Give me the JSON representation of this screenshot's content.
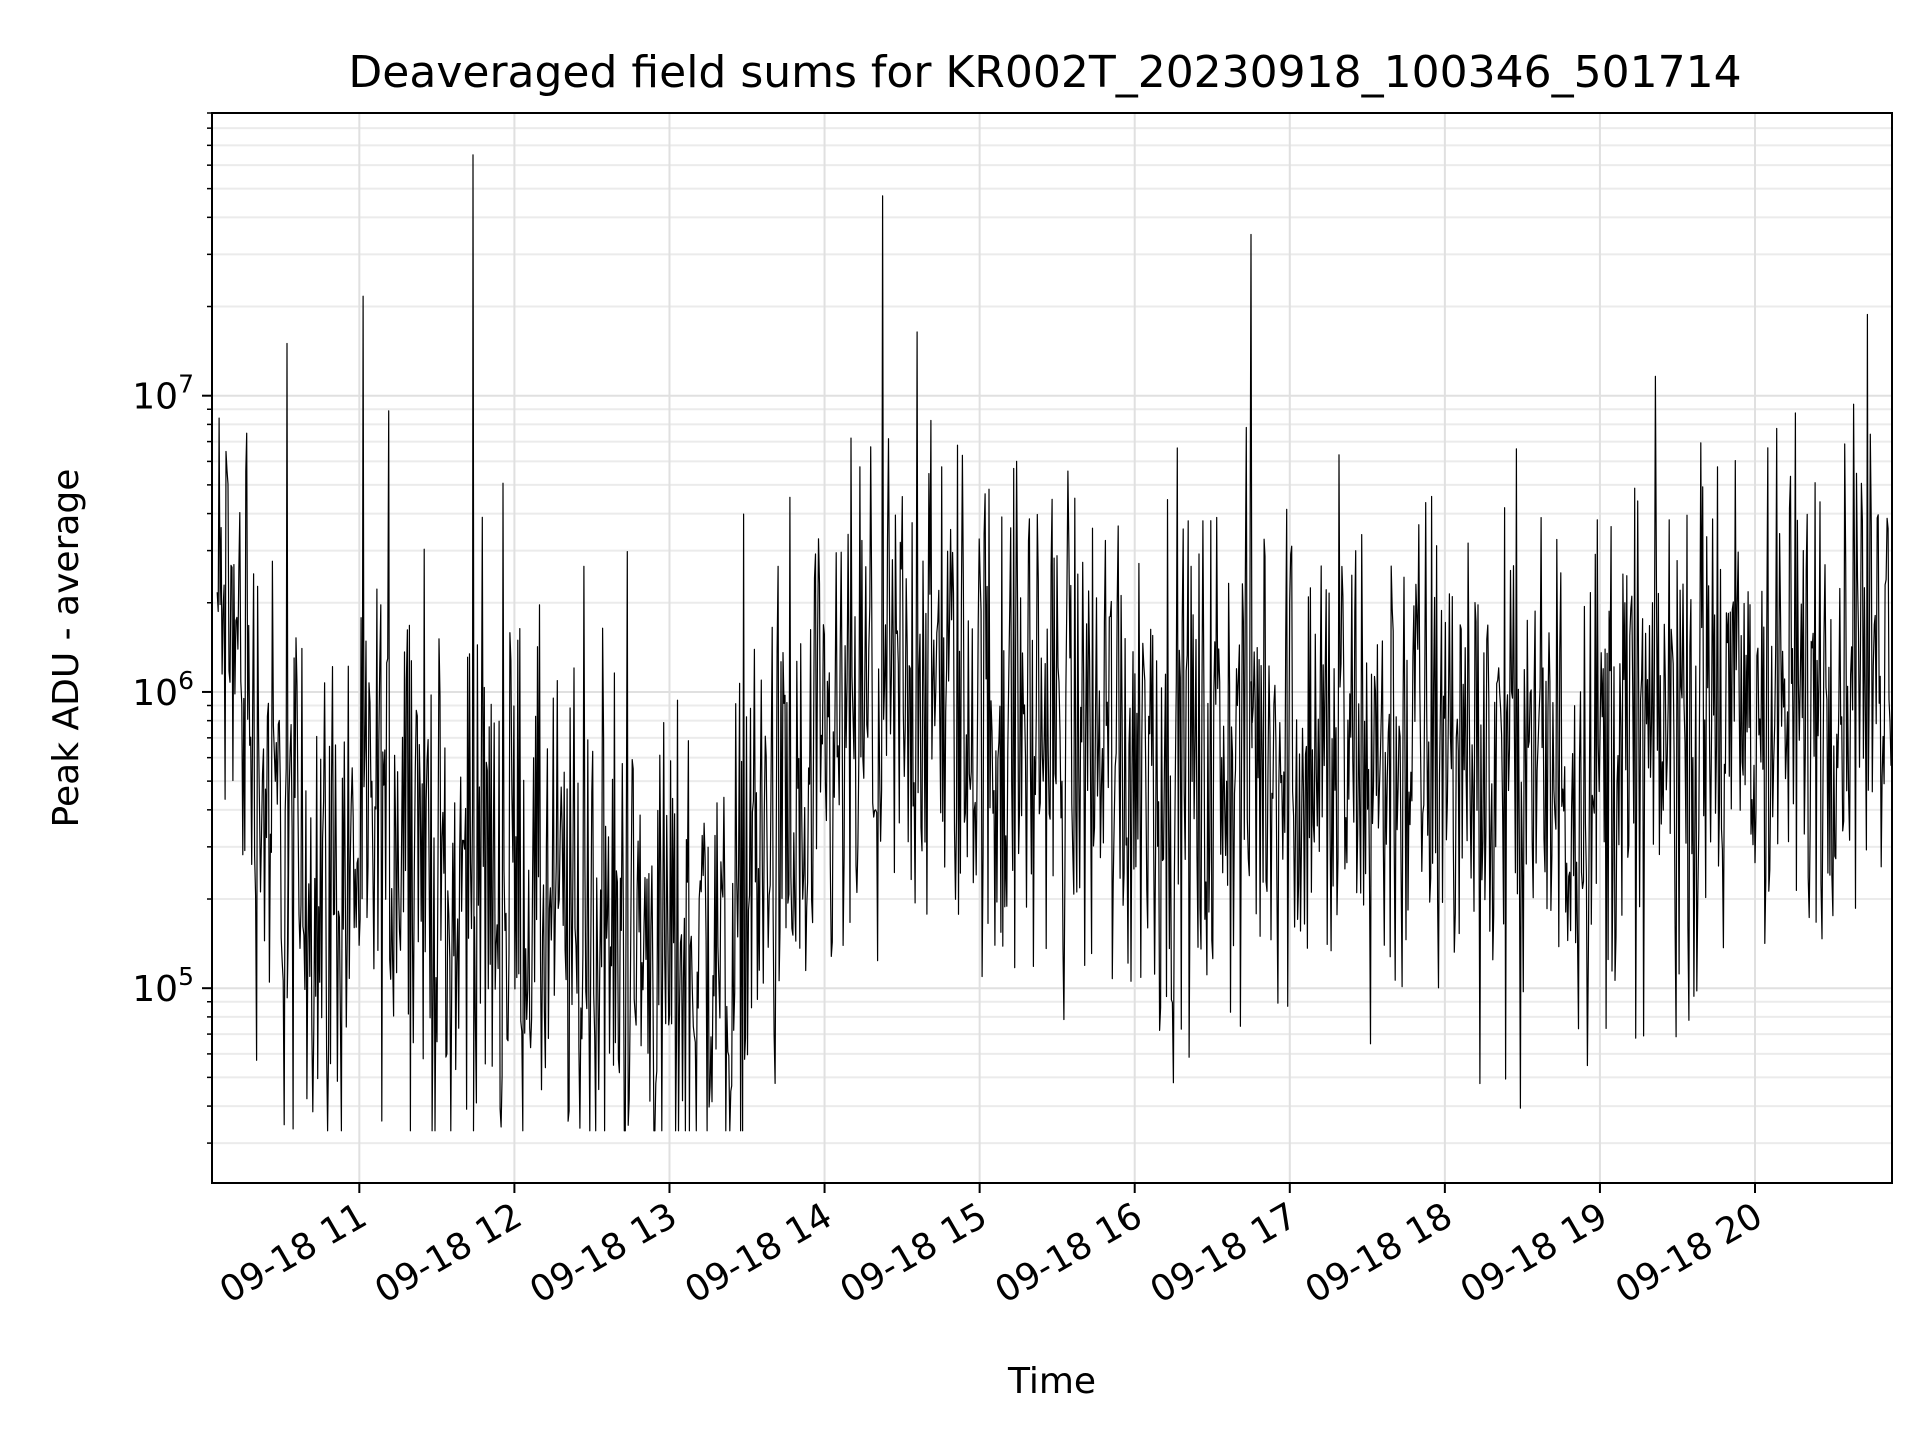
{
  "chart_data": {
    "type": "line",
    "title": "Deaveraged field sums for KR002T_20230918_100346_501714",
    "xlabel": "Time",
    "ylabel": "Peak ADU - average",
    "yscale": "log",
    "ylim": [
      22000,
      90000000
    ],
    "xlim": [
      "2023-09-18 10:03",
      "2023-09-18 20:53"
    ],
    "x_ticks": [
      {
        "value": "2023-09-18 11:00",
        "label": "09-18 11"
      },
      {
        "value": "2023-09-18 12:00",
        "label": "09-18 12"
      },
      {
        "value": "2023-09-18 13:00",
        "label": "09-18 13"
      },
      {
        "value": "2023-09-18 14:00",
        "label": "09-18 14"
      },
      {
        "value": "2023-09-18 15:00",
        "label": "09-18 15"
      },
      {
        "value": "2023-09-18 16:00",
        "label": "09-18 16"
      },
      {
        "value": "2023-09-18 17:00",
        "label": "09-18 17"
      },
      {
        "value": "2023-09-18 18:00",
        "label": "09-18 18"
      },
      {
        "value": "2023-09-18 19:00",
        "label": "09-18 19"
      },
      {
        "value": "2023-09-18 20:00",
        "label": "09-18 20"
      }
    ],
    "y_ticks": [
      {
        "value": 100000,
        "base": "10",
        "exp": "5"
      },
      {
        "value": 1000000,
        "base": "10",
        "exp": "6"
      },
      {
        "value": 10000000,
        "base": "10",
        "exp": "7"
      }
    ],
    "grid": true,
    "line_color": "#000000",
    "series": [
      {
        "x": [
          "10:05",
          "10:10",
          "10:15",
          "10:20",
          "10:25",
          "10:30",
          "10:32",
          "10:35",
          "10:40",
          "10:45",
          "10:50",
          "10:55",
          "11:00",
          "11:05",
          "11:10",
          "11:15",
          "11:20",
          "11:25",
          "11:30",
          "11:35",
          "11:40",
          "11:44",
          "11:45",
          "11:50",
          "11:55",
          "12:00",
          "12:10",
          "12:20",
          "12:30",
          "12:40",
          "12:50",
          "13:00",
          "13:10",
          "13:20",
          "13:25",
          "13:30",
          "13:40",
          "13:50",
          "14:00",
          "14:10",
          "14:20",
          "14:30",
          "14:40",
          "14:50",
          "15:00",
          "15:10",
          "15:20",
          "15:30",
          "15:40",
          "15:50",
          "16:00",
          "16:10",
          "16:20",
          "16:30",
          "16:40",
          "16:45",
          "16:50",
          "17:00",
          "17:10",
          "17:20",
          "17:30",
          "17:40",
          "17:50",
          "18:00",
          "18:10",
          "18:20",
          "18:30",
          "18:40",
          "18:50",
          "19:00",
          "19:10",
          "19:20",
          "19:30",
          "19:40",
          "19:50",
          "20:00",
          "20:10",
          "20:20",
          "20:30",
          "20:40",
          "20:50"
        ],
        "y": [
          1800000,
          1500000,
          1200000,
          600000,
          400000,
          300000,
          15000000,
          200000,
          250000,
          220000,
          200000,
          250000,
          300000,
          280000,
          350000,
          400000,
          450000,
          300000,
          200000,
          150000,
          200000,
          65000000,
          300000,
          250000,
          200000,
          220000,
          180000,
          160000,
          150000,
          140000,
          130000,
          120000,
          130000,
          120000,
          110000,
          250000,
          300000,
          280000,
          400000,
          700000,
          800000,
          900000,
          1000000,
          1000000,
          800000,
          700000,
          800000,
          700000,
          750000,
          700000,
          650000,
          600000,
          550000,
          500000,
          600000,
          35000000,
          700000,
          650000,
          600000,
          550000,
          550000,
          600000,
          650000,
          600000,
          650000,
          550000,
          600000,
          500000,
          550000,
          600000,
          650000,
          700000,
          750000,
          700000,
          750000,
          800000,
          850000,
          900000,
          1200000,
          1400000,
          1500000
        ]
      }
    ]
  }
}
